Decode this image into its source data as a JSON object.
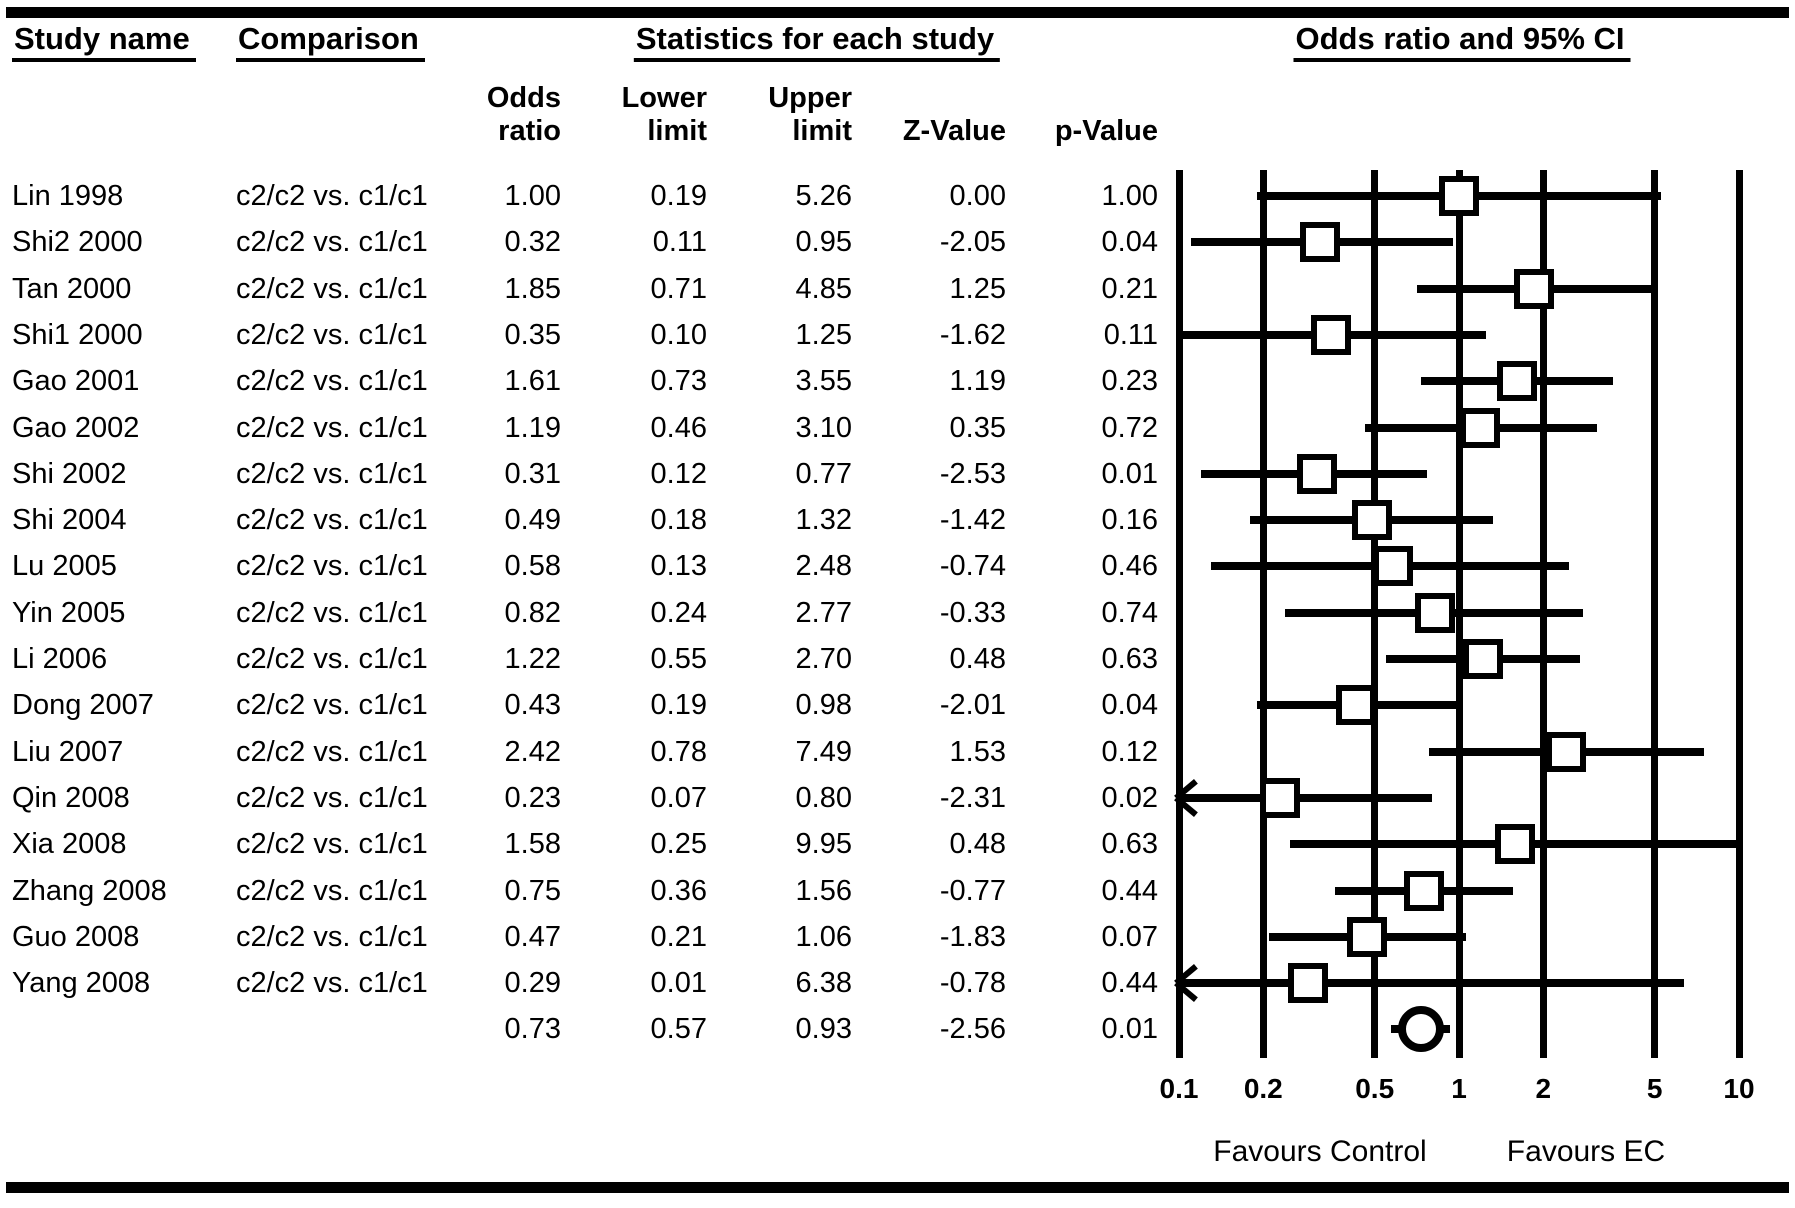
{
  "columns": {
    "study": "Study name",
    "comparison": "Comparison",
    "statistics_group": "Statistics for each study",
    "plot_group": "Odds ratio and 95% CI",
    "odds_ratio": "Odds\nratio",
    "lower_limit": "Lower\nlimit",
    "upper_limit": "Upper\nlimit",
    "z_value": "Z-Value",
    "p_value": "p-Value"
  },
  "axis": {
    "favours_left": "Favours Control",
    "favours_right": "Favours EC"
  },
  "chart_data": {
    "type": "scatter",
    "variant": "forest_plot",
    "title": "Odds ratio and 95% CI",
    "x_scale": "log10",
    "x_range": [
      0.1,
      10
    ],
    "x_ticks": [
      0.1,
      0.2,
      0.5,
      1,
      2,
      5,
      10
    ],
    "xlabel_left": "Favours Control",
    "xlabel_right": "Favours EC",
    "grid": true,
    "marker_color": "#000000",
    "studies": [
      {
        "name": "Lin 1998",
        "comparison": "c2/c2 vs. c1/c1",
        "or": 1.0,
        "lower": 0.19,
        "upper": 5.26,
        "z": 0.0,
        "p": 1.0
      },
      {
        "name": "Shi2 2000",
        "comparison": "c2/c2 vs. c1/c1",
        "or": 0.32,
        "lower": 0.11,
        "upper": 0.95,
        "z": -2.05,
        "p": 0.04
      },
      {
        "name": "Tan 2000",
        "comparison": "c2/c2 vs. c1/c1",
        "or": 1.85,
        "lower": 0.71,
        "upper": 4.85,
        "z": 1.25,
        "p": 0.21
      },
      {
        "name": "Shi1 2000",
        "comparison": "c2/c2 vs. c1/c1",
        "or": 0.35,
        "lower": 0.1,
        "upper": 1.25,
        "z": -1.62,
        "p": 0.11
      },
      {
        "name": "Gao 2001",
        "comparison": "c2/c2 vs. c1/c1",
        "or": 1.61,
        "lower": 0.73,
        "upper": 3.55,
        "z": 1.19,
        "p": 0.23
      },
      {
        "name": "Gao 2002",
        "comparison": "c2/c2 vs. c1/c1",
        "or": 1.19,
        "lower": 0.46,
        "upper": 3.1,
        "z": 0.35,
        "p": 0.72
      },
      {
        "name": "Shi 2002",
        "comparison": "c2/c2 vs. c1/c1",
        "or": 0.31,
        "lower": 0.12,
        "upper": 0.77,
        "z": -2.53,
        "p": 0.01
      },
      {
        "name": "Shi 2004",
        "comparison": "c2/c2 vs. c1/c1",
        "or": 0.49,
        "lower": 0.18,
        "upper": 1.32,
        "z": -1.42,
        "p": 0.16
      },
      {
        "name": "Lu 2005",
        "comparison": "c2/c2 vs. c1/c1",
        "or": 0.58,
        "lower": 0.13,
        "upper": 2.48,
        "z": -0.74,
        "p": 0.46
      },
      {
        "name": "Yin 2005",
        "comparison": "c2/c2 vs. c1/c1",
        "or": 0.82,
        "lower": 0.24,
        "upper": 2.77,
        "z": -0.33,
        "p": 0.74
      },
      {
        "name": "Li 2006",
        "comparison": "c2/c2 vs. c1/c1",
        "or": 1.22,
        "lower": 0.55,
        "upper": 2.7,
        "z": 0.48,
        "p": 0.63
      },
      {
        "name": "Dong 2007",
        "comparison": "c2/c2 vs. c1/c1",
        "or": 0.43,
        "lower": 0.19,
        "upper": 0.98,
        "z": -2.01,
        "p": 0.04
      },
      {
        "name": "Liu 2007",
        "comparison": "c2/c2 vs. c1/c1",
        "or": 2.42,
        "lower": 0.78,
        "upper": 7.49,
        "z": 1.53,
        "p": 0.12
      },
      {
        "name": "Qin 2008",
        "comparison": "c2/c2 vs. c1/c1",
        "or": 0.23,
        "lower": 0.07,
        "upper": 0.8,
        "z": -2.31,
        "p": 0.02
      },
      {
        "name": "Xia 2008",
        "comparison": "c2/c2 vs. c1/c1",
        "or": 1.58,
        "lower": 0.25,
        "upper": 9.95,
        "z": 0.48,
        "p": 0.63
      },
      {
        "name": "Zhang 2008",
        "comparison": "c2/c2 vs. c1/c1",
        "or": 0.75,
        "lower": 0.36,
        "upper": 1.56,
        "z": -0.77,
        "p": 0.44
      },
      {
        "name": "Guo 2008",
        "comparison": "c2/c2 vs. c1/c1",
        "or": 0.47,
        "lower": 0.21,
        "upper": 1.06,
        "z": -1.83,
        "p": 0.07
      },
      {
        "name": "Yang 2008",
        "comparison": "c2/c2 vs. c1/c1",
        "or": 0.29,
        "lower": 0.01,
        "upper": 6.38,
        "z": -0.78,
        "p": 0.44
      }
    ],
    "summary": {
      "or": 0.73,
      "lower": 0.57,
      "upper": 0.93,
      "z": -2.56,
      "p": 0.01,
      "marker": "circle"
    }
  }
}
